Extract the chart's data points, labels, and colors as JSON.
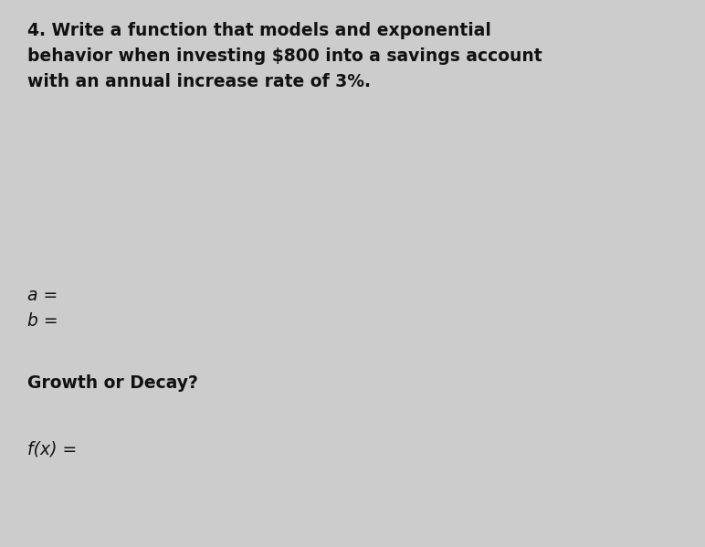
{
  "background_color": "#cccccc",
  "title_line1": "4. Write a function that models and exponential",
  "title_line2": "behavior when investing $800 into a savings account",
  "title_line3": "with an annual increase rate of 3%.",
  "label_a": "a =",
  "label_b": "b =",
  "label_growth": "Growth or Decay?",
  "label_fx": "f(x) =",
  "text_color": "#111111",
  "title_fontsize": 13.5,
  "label_fontsize": 13.5,
  "fig_width": 7.72,
  "fig_height": 5.99,
  "dpi": 100
}
